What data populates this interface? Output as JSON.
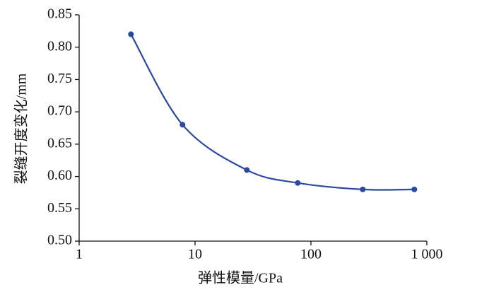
{
  "chart_data": {
    "type": "line",
    "x_label": "弹性模量/GPa",
    "y_label": "裂缝开度变化/mm",
    "x": [
      2.8,
      7.8,
      28,
      77,
      280,
      780
    ],
    "series": [
      {
        "name": "裂缝开度变化",
        "color": "#2a4aa0",
        "values": [
          0.82,
          0.68,
          0.61,
          0.59,
          0.58,
          0.58
        ]
      }
    ],
    "x_log": true,
    "legend": false,
    "xlim": [
      1,
      1000
    ],
    "xticks": [
      1,
      10,
      100,
      {
        "value": 1000,
        "label": "1 000"
      }
    ],
    "ylim": [
      0.5,
      0.85
    ],
    "yticks": [
      {
        "value": 0.5,
        "label": "0.50"
      },
      0.55,
      {
        "value": 0.6,
        "label": "0.60"
      },
      0.65,
      {
        "value": 0.7,
        "label": "0.70"
      },
      0.75,
      {
        "value": 0.8,
        "label": "0.80"
      },
      0.85
    ]
  }
}
